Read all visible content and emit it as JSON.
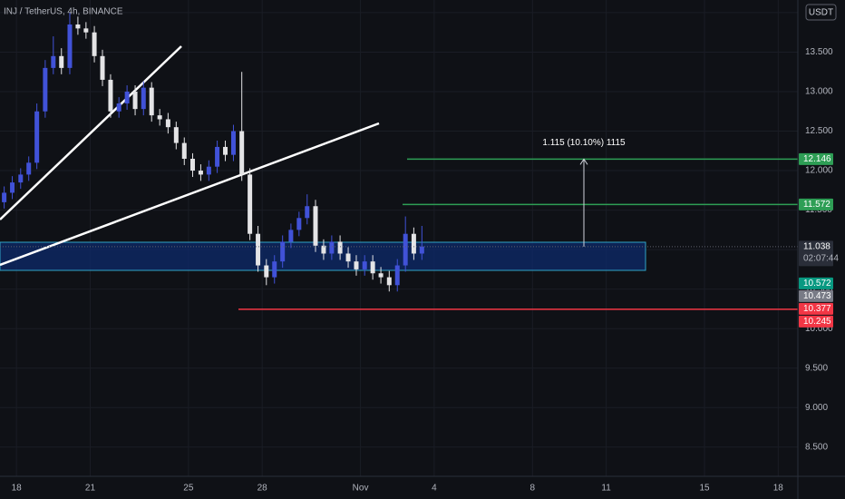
{
  "chart_data": {
    "type": "candlestick",
    "title": "INJ / TetherUS, 4h, BINANCE",
    "currency": "USDT",
    "up_color": "#4152d8",
    "down_color": "#e4e4e6",
    "grid": true,
    "ylim": [
      8.13,
      14.16
    ],
    "yticks": [
      {
        "value": 8.5,
        "label": "8.500"
      },
      {
        "value": 9,
        "label": "9.000"
      },
      {
        "value": 9.5,
        "label": "9.500"
      },
      {
        "value": 10,
        "label": "10.000"
      },
      {
        "value": 10.5,
        "label": "10.500"
      },
      {
        "value": 11,
        "label": "11.000"
      },
      {
        "value": 11.5,
        "label": "11.500"
      },
      {
        "value": 12,
        "label": "12.000"
      },
      {
        "value": 12.5,
        "label": "12.500"
      },
      {
        "value": 13,
        "label": "13.000"
      },
      {
        "value": 13.5,
        "label": "13.500"
      },
      {
        "value": 14,
        "label": "14.000"
      }
    ],
    "xlim": [
      17.33,
      49.8
    ],
    "xticks": [
      {
        "value": 18,
        "label": "18"
      },
      {
        "value": 21,
        "label": "21"
      },
      {
        "value": 25,
        "label": "25"
      },
      {
        "value": 28,
        "label": "28"
      },
      {
        "value": 32,
        "label": "Nov"
      },
      {
        "value": 35,
        "label": "4"
      },
      {
        "value": 39,
        "label": "8"
      },
      {
        "value": 42,
        "label": "11"
      },
      {
        "value": 46,
        "label": "15"
      },
      {
        "value": 49,
        "label": "18"
      }
    ],
    "x": [
      17.5,
      17.83,
      18.17,
      18.5,
      18.83,
      19.17,
      19.5,
      19.83,
      20.17,
      20.5,
      20.83,
      21.17,
      21.5,
      21.83,
      22.17,
      22.5,
      22.83,
      23.17,
      23.5,
      23.83,
      24.17,
      24.5,
      24.83,
      25.17,
      25.5,
      25.83,
      26.17,
      26.5,
      26.83,
      27.17,
      27.5,
      27.83,
      28.17,
      28.5,
      28.83,
      29.17,
      29.5,
      29.83,
      30.17,
      30.5,
      30.83,
      31.17,
      31.5,
      31.83,
      32.17,
      32.5,
      32.83,
      33.17,
      33.5,
      33.83,
      34.17,
      34.5
    ],
    "open": [
      11.6,
      11.72,
      11.85,
      11.95,
      12.1,
      12.75,
      13.3,
      13.45,
      13.3,
      13.85,
      13.8,
      13.75,
      13.45,
      13.15,
      12.75,
      12.85,
      13.0,
      12.78,
      13.05,
      12.7,
      12.65,
      12.55,
      12.35,
      12.15,
      12.0,
      11.95,
      12.05,
      12.3,
      12.2,
      12.5,
      11.95,
      11.2,
      10.8,
      10.65,
      10.85,
      11.1,
      11.25,
      11.4,
      11.55,
      11.05,
      10.95,
      11.1,
      10.95,
      10.85,
      10.75,
      10.85,
      10.7,
      10.65,
      10.55,
      10.8,
      11.2,
      10.95
    ],
    "high": [
      11.8,
      11.93,
      12.03,
      12.18,
      12.85,
      13.4,
      13.7,
      13.55,
      14.0,
      13.95,
      13.88,
      13.83,
      13.53,
      13.22,
      12.93,
      13.08,
      13.08,
      13.13,
      13.12,
      12.78,
      12.73,
      12.62,
      12.42,
      12.22,
      12.08,
      12.13,
      12.38,
      12.38,
      12.58,
      13.25,
      12.03,
      11.3,
      10.88,
      10.93,
      11.18,
      11.33,
      11.48,
      11.7,
      11.63,
      11.13,
      11.18,
      11.18,
      11.03,
      10.93,
      10.93,
      10.93,
      10.78,
      10.73,
      10.88,
      11.42,
      11.28,
      11.3
    ],
    "low": [
      11.52,
      11.64,
      11.77,
      11.87,
      12.02,
      12.67,
      13.22,
      13.22,
      13.22,
      13.72,
      13.67,
      13.37,
      13.07,
      12.67,
      12.67,
      12.77,
      12.7,
      12.7,
      12.62,
      12.57,
      12.47,
      12.27,
      12.07,
      11.92,
      11.87,
      11.87,
      11.97,
      12.12,
      12.12,
      11.87,
      11.12,
      10.72,
      10.55,
      10.57,
      10.77,
      11.02,
      11.17,
      11.32,
      10.97,
      10.87,
      10.87,
      10.87,
      10.77,
      10.67,
      10.67,
      10.62,
      10.57,
      10.47,
      10.47,
      10.72,
      10.87,
      10.87
    ],
    "close": [
      11.72,
      11.85,
      11.95,
      12.1,
      12.75,
      13.3,
      13.45,
      13.3,
      13.85,
      13.8,
      13.75,
      13.45,
      13.15,
      12.75,
      12.85,
      13.0,
      12.78,
      13.05,
      12.7,
      12.65,
      12.55,
      12.35,
      12.15,
      12.0,
      11.95,
      12.05,
      12.3,
      12.2,
      12.5,
      11.95,
      11.2,
      10.8,
      10.65,
      10.85,
      11.1,
      11.25,
      11.4,
      11.55,
      11.05,
      10.95,
      11.1,
      10.95,
      10.85,
      10.75,
      10.85,
      10.7,
      10.65,
      10.55,
      10.8,
      11.2,
      10.95,
      11.04
    ],
    "price_tags": [
      {
        "value": 12.146,
        "label": "12.146",
        "color": "#2e9e55"
      },
      {
        "value": 11.572,
        "label": "11.572",
        "color": "#2e9e55"
      },
      {
        "value": 11.038,
        "label": "11.038",
        "color": "#2a2e39"
      },
      {
        "value": 10.572,
        "label": "10.572",
        "color": "#089981"
      },
      {
        "value": 10.473,
        "label": "10.473",
        "color": "#787b86"
      },
      {
        "value": 10.377,
        "label": "10.377",
        "color": "#f23645"
      },
      {
        "value": 10.245,
        "label": "10.245",
        "color": "#f23645"
      }
    ],
    "countdown": "02:07:44",
    "measure_label": "1.115 (10.10%) 1115"
  }
}
